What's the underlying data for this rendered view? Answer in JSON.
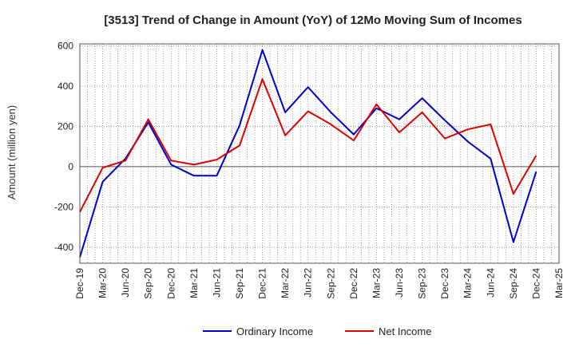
{
  "chart_data": {
    "type": "line",
    "title": "[3513]  Trend of Change in Amount (YoY) of 12Mo Moving Sum of Incomes",
    "xlabel": "",
    "ylabel": "Amount (million yen)",
    "ylim": [
      -480,
      610
    ],
    "yticks": [
      -400,
      -200,
      0,
      200,
      400,
      600
    ],
    "grid": true,
    "legend_position": "bottom",
    "categories": [
      "Dec-19",
      "Mar-20",
      "Jun-20",
      "Sep-20",
      "Dec-20",
      "Mar-21",
      "Jun-21",
      "Sep-21",
      "Dec-21",
      "Mar-22",
      "Jun-22",
      "Sep-22",
      "Dec-22",
      "Mar-23",
      "Jun-23",
      "Sep-23",
      "Dec-23",
      "Mar-24",
      "Jun-24",
      "Sep-24",
      "Dec-24",
      "Mar-25"
    ],
    "series": [
      {
        "name": "Ordinary Income",
        "color": "#0000cc",
        "values": [
          -450,
          -75,
          40,
          220,
          10,
          -45,
          -45,
          205,
          580,
          270,
          395,
          270,
          160,
          290,
          235,
          340,
          230,
          125,
          40,
          -375,
          -25,
          null
        ]
      },
      {
        "name": "Net Income",
        "color": "#dd0000",
        "values": [
          -225,
          -5,
          30,
          235,
          30,
          10,
          35,
          105,
          435,
          155,
          275,
          210,
          130,
          310,
          170,
          270,
          140,
          185,
          210,
          -135,
          55,
          null
        ]
      }
    ]
  }
}
